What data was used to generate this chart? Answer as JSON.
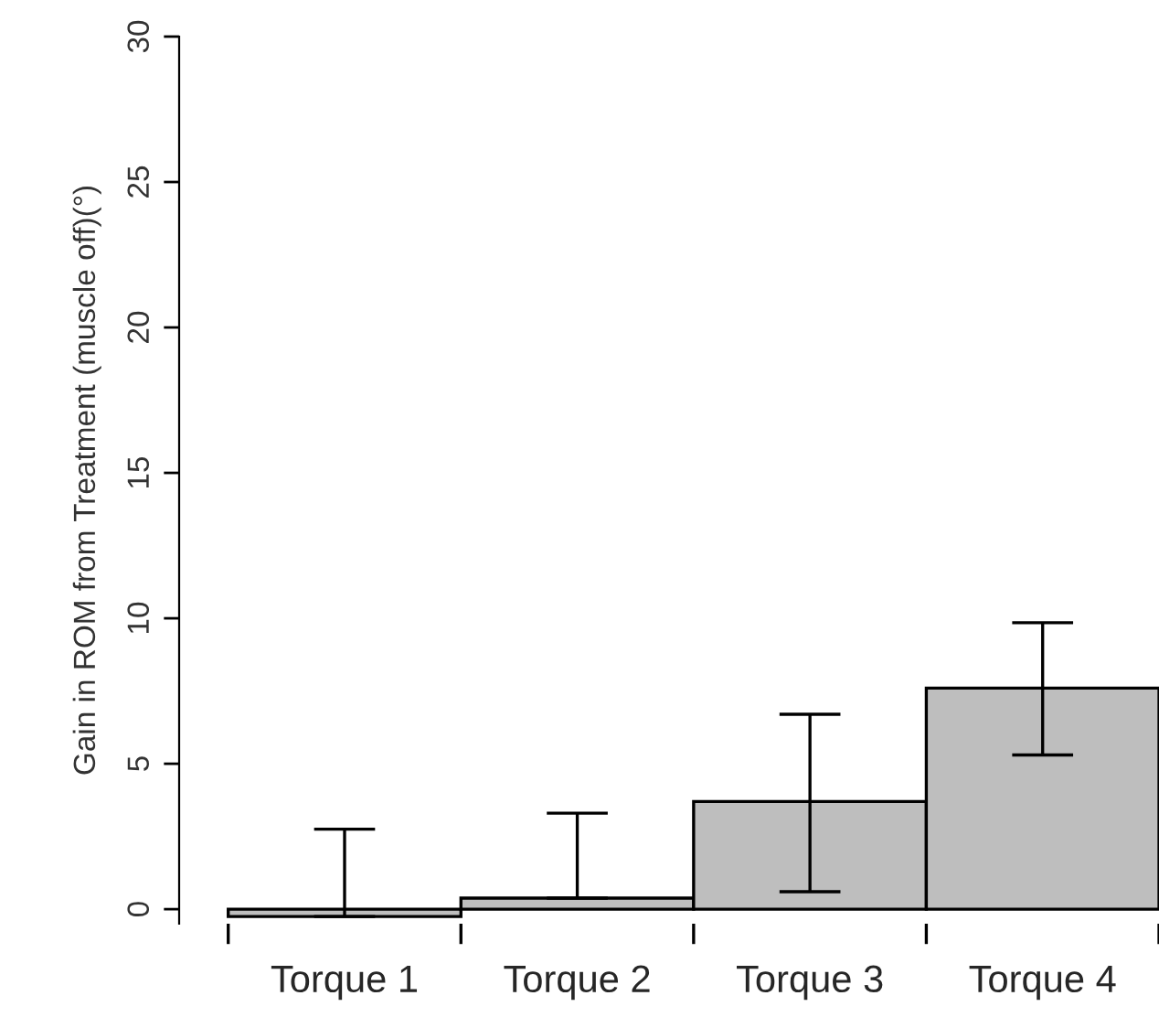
{
  "chart_data": {
    "type": "bar",
    "ylabel": "Gain in ROM from Treatment (muscle off)(°)",
    "categories": [
      "Torque 1",
      "Torque 2",
      "Torque 3",
      "Torque 4"
    ],
    "values": [
      -0.25,
      0.38,
      3.7,
      7.6
    ],
    "errors": [
      [
        -0.25,
        2.75
      ],
      [
        0.38,
        3.3
      ],
      [
        0.6,
        6.7
      ],
      [
        5.3,
        9.85
      ]
    ],
    "color": "#bebebe",
    "ylim": [
      -0.5,
      30
    ],
    "yticks": [
      0,
      5,
      10,
      15,
      20,
      25,
      30
    ],
    "grid": false
  }
}
